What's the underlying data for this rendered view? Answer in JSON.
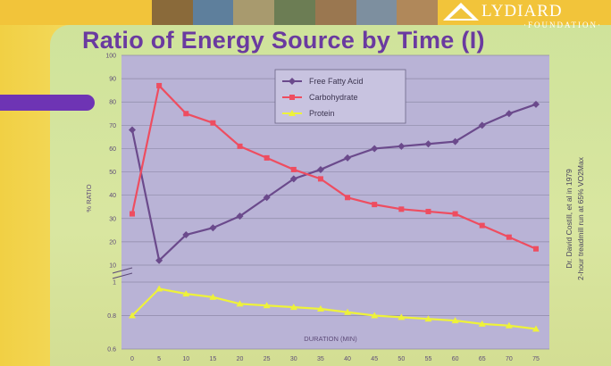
{
  "slide": {
    "title": "Ratio of Energy Source by Time (I)",
    "logo_name": "LYDIARD",
    "logo_sub": "·FOUNDATION·",
    "note_line1": "Dr. David Costill, et al in 1979",
    "note_line2": "2-hour treadmill run at 65% VO2Max"
  },
  "colors": {
    "plot_bg": "#b9b3d6",
    "ffa": "#6b4a8c",
    "carb": "#ee4d60",
    "protein": "#eef23a",
    "title": "#6a3aa0"
  },
  "chart_data": {
    "type": "line",
    "xlabel": "DURATION (MIN)",
    "ylabel": "% RATIO",
    "x": [
      0,
      5,
      10,
      15,
      20,
      25,
      30,
      35,
      40,
      45,
      50,
      55,
      60,
      65,
      70,
      75
    ],
    "x_ticks": [
      "0",
      "5",
      "10",
      "15",
      "20",
      "25",
      "30",
      "35",
      "40",
      "45",
      "50",
      "55",
      "60",
      "65",
      "70",
      "75"
    ],
    "y_ticks_upper": [
      "100",
      "90",
      "80",
      "70",
      "60",
      "50",
      "40",
      "30",
      "20",
      "10"
    ],
    "y_ticks_lower": [
      "1",
      "0.8",
      "0.6"
    ],
    "ylim_upper": [
      10,
      100
    ],
    "ylim_lower": [
      0.6,
      1
    ],
    "grid": true,
    "legend_position": "top-center",
    "series": [
      {
        "name": "Free Fatty Acid",
        "color": "#6b4a8c",
        "marker": "diamond",
        "values": [
          68,
          12,
          23,
          26,
          31,
          39,
          47,
          51,
          56,
          60,
          61,
          62,
          63,
          70,
          75,
          79
        ]
      },
      {
        "name": "Carbohydrate",
        "color": "#ee4d60",
        "marker": "square",
        "values": [
          32,
          87,
          75,
          71,
          61,
          56,
          51,
          47,
          39,
          36,
          34,
          33,
          32,
          27,
          22,
          17
        ]
      },
      {
        "name": "Protein",
        "color": "#eef23a",
        "marker": "triangle",
        "values": [
          0.8,
          0.96,
          0.93,
          0.91,
          0.87,
          0.86,
          0.85,
          0.84,
          0.82,
          0.8,
          0.79,
          0.78,
          0.77,
          0.75,
          0.74,
          0.72
        ]
      }
    ]
  }
}
